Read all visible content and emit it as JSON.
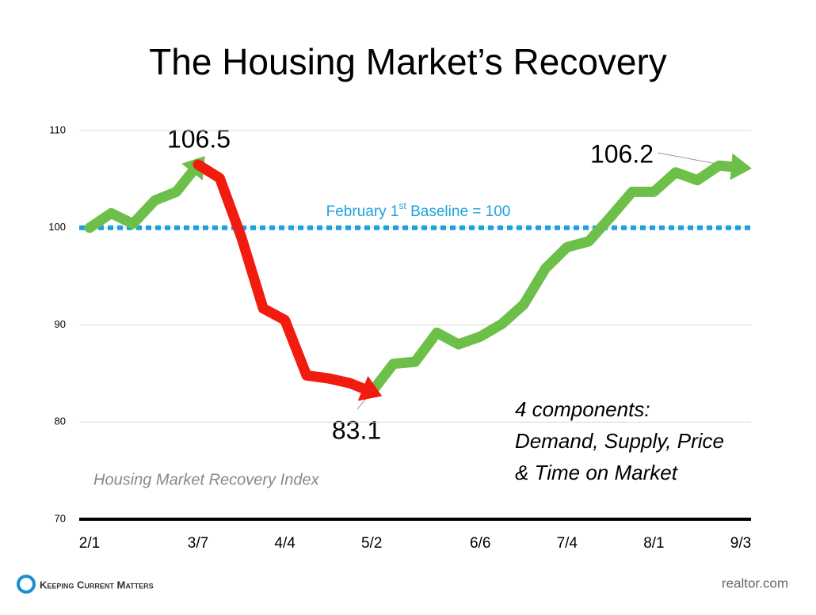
{
  "chart_data": {
    "type": "line",
    "title": "The Housing Market’s Recovery",
    "categories": [
      "2/1",
      null,
      null,
      null,
      null,
      "3/7",
      null,
      null,
      null,
      "4/4",
      null,
      null,
      null,
      "5/2",
      null,
      null,
      null,
      null,
      "6/6",
      null,
      null,
      null,
      "7/4",
      null,
      null,
      null,
      "8/1",
      null,
      null,
      null,
      "9/3"
    ],
    "series": [
      {
        "color": "#6cc04a",
        "values": [
          100,
          101.5,
          100.4,
          102.8,
          103.7,
          106.5,
          null,
          null,
          null,
          null,
          null,
          null,
          null,
          83.1,
          86,
          86.2,
          89.2,
          88,
          88.8,
          90.1,
          92.1,
          95.8,
          98,
          98.6,
          101.1,
          103.7,
          103.7,
          105.7,
          104.9,
          106.4,
          106.2
        ]
      },
      {
        "color": "#f21b0f",
        "values": [
          null,
          null,
          null,
          null,
          null,
          106.5,
          105.1,
          99,
          91.7,
          90.5,
          84.8,
          84.5,
          84,
          83.1,
          null,
          null,
          null,
          null,
          null,
          null,
          null,
          null,
          null,
          null,
          null,
          null,
          null,
          null,
          null,
          null,
          null
        ]
      }
    ],
    "ylim": [
      70,
      110
    ],
    "yticks": [
      70,
      80,
      90,
      100,
      110
    ],
    "grid": true,
    "baseline": {
      "value": 100,
      "color": "#1ea0dc",
      "label": "February 1",
      "sup": "st",
      "label_end": " Baseline = 100"
    },
    "annotations": [
      "106.5",
      "83.1",
      "106.2"
    ],
    "index_label": "Housing Market Recovery Index",
    "note": [
      "4 components:",
      "Demand, Supply, Price",
      "& Time on Market"
    ],
    "footer_left": "Keeping Current Matters",
    "source": "realtor.com"
  }
}
